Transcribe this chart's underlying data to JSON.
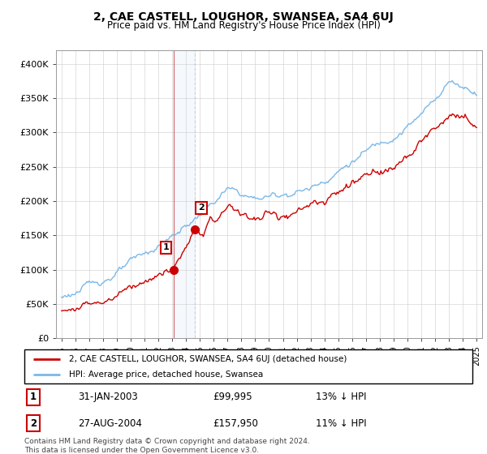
{
  "title": "2, CAE CASTELL, LOUGHOR, SWANSEA, SA4 6UJ",
  "subtitle": "Price paid vs. HM Land Registry's House Price Index (HPI)",
  "ylabel_ticks": [
    "£0",
    "£50K",
    "£100K",
    "£150K",
    "£200K",
    "£250K",
    "£300K",
    "£350K",
    "£400K"
  ],
  "ytick_values": [
    0,
    50000,
    100000,
    150000,
    200000,
    250000,
    300000,
    350000,
    400000
  ],
  "ylim": [
    0,
    420000
  ],
  "hpi_color": "#7ab8e8",
  "price_color": "#cc0000",
  "sale1_year": 2003.08,
  "sale2_year": 2004.65,
  "marker1_price": 99995,
  "marker2_price": 157950,
  "sale1_label": "1",
  "sale2_label": "2",
  "sale1_date": "31-JAN-2003",
  "sale1_price": "£99,995",
  "sale1_hpi": "13% ↓ HPI",
  "sale2_date": "27-AUG-2004",
  "sale2_price": "£157,950",
  "sale2_hpi": "11% ↓ HPI",
  "legend1": "2, CAE CASTELL, LOUGHOR, SWANSEA, SA4 6UJ (detached house)",
  "legend2": "HPI: Average price, detached house, Swansea",
  "footer": "Contains HM Land Registry data © Crown copyright and database right 2024.\nThis data is licensed under the Open Government Licence v3.0.",
  "background_color": "#ffffff",
  "grid_color": "#cccccc",
  "xstart": 1995,
  "xend": 2025
}
